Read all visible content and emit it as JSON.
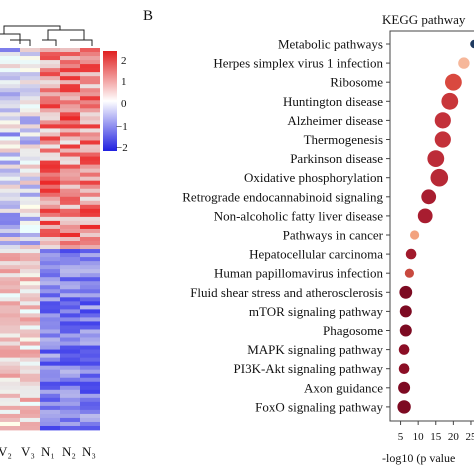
{
  "panel_b_label": "B",
  "heatmap": {
    "columns": [
      "V₂",
      "V₃",
      "N₁",
      "N₂",
      "N₃"
    ],
    "colorbar": {
      "ticks": [
        "2",
        "1",
        "0",
        "−1",
        "−2"
      ],
      "colors": [
        "#dd2222",
        "#ffffff",
        "#2222dd"
      ]
    }
  },
  "chart_data": {
    "type": "scatter",
    "title": "KEGG pathway",
    "xlabel": "-log10 (p value",
    "xticks": [
      "5",
      "10",
      "15",
      "20",
      "25"
    ],
    "xlim": [
      2,
      27
    ],
    "y_order": "top-to-bottom",
    "points": [
      {
        "label": "Metabolic pathways",
        "x": 26,
        "size": 0.25,
        "color": "#1e3a5f"
      },
      {
        "label": "Herpes simplex virus 1 infection",
        "x": 23,
        "size": 0.45,
        "color": "#f6b79a"
      },
      {
        "label": "Ribosome",
        "x": 20,
        "size": 0.85,
        "color": "#d9493f"
      },
      {
        "label": "Huntington disease",
        "x": 19,
        "size": 0.85,
        "color": "#c8363a"
      },
      {
        "label": "Alzheimer disease",
        "x": 17,
        "size": 0.8,
        "color": "#c3313a"
      },
      {
        "label": "Thermogenesis",
        "x": 17,
        "size": 0.8,
        "color": "#c3313a"
      },
      {
        "label": "Parkinson disease",
        "x": 15,
        "size": 0.85,
        "color": "#bc2c38"
      },
      {
        "label": "Oxidative phosphorylation",
        "x": 16,
        "size": 0.9,
        "color": "#b72936"
      },
      {
        "label": "Retrograde endocannabinoid signaling",
        "x": 13,
        "size": 0.7,
        "color": "#a81d30"
      },
      {
        "label": "Non-alcoholic fatty liver disease",
        "x": 12,
        "size": 0.7,
        "color": "#a81d30"
      },
      {
        "label": "Pathways in cancer",
        "x": 9,
        "size": 0.3,
        "color": "#f2a27f"
      },
      {
        "label": "Hepatocellular carcinoma",
        "x": 8,
        "size": 0.4,
        "color": "#a11a2c"
      },
      {
        "label": "Human papillomavirus infection",
        "x": 7.5,
        "size": 0.3,
        "color": "#c8493f"
      },
      {
        "label": "Fluid shear stress and atherosclerosis",
        "x": 6.5,
        "size": 0.55,
        "color": "#7d0a22"
      },
      {
        "label": "mTOR signaling pathway",
        "x": 6.5,
        "size": 0.5,
        "color": "#7d0a22"
      },
      {
        "label": "Phagosome",
        "x": 6.5,
        "size": 0.5,
        "color": "#7d0a22"
      },
      {
        "label": "MAPK signaling pathway",
        "x": 6,
        "size": 0.4,
        "color": "#8b0e25"
      },
      {
        "label": "PI3K-Akt signaling pathway",
        "x": 6,
        "size": 0.4,
        "color": "#8b0e25"
      },
      {
        "label": "Axon guidance",
        "x": 6,
        "size": 0.5,
        "color": "#7d0a22"
      },
      {
        "label": "FoxO signaling pathway",
        "x": 6,
        "size": 0.6,
        "color": "#7d0a22"
      }
    ]
  }
}
